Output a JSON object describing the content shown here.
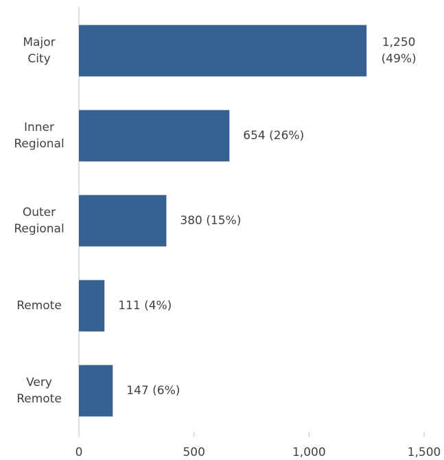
{
  "chart_data": {
    "type": "barh",
    "categories": [
      "Major City",
      "Inner Regional",
      "Outer Regional",
      "Remote",
      "Very Remote"
    ],
    "values": [
      1250,
      654,
      380,
      111,
      147
    ],
    "value_labels": [
      "1,250 (49%)",
      "654  (26%)",
      "380  (15%)",
      "111  (4%)",
      "147  (6%)"
    ],
    "color": "#376092",
    "xlim": [
      0,
      1500
    ],
    "xticks": [
      0,
      500,
      {
        "value": 1000,
        "label": "1,000"
      },
      {
        "value": 1500,
        "label": "1,500"
      }
    ],
    "grid": false
  }
}
